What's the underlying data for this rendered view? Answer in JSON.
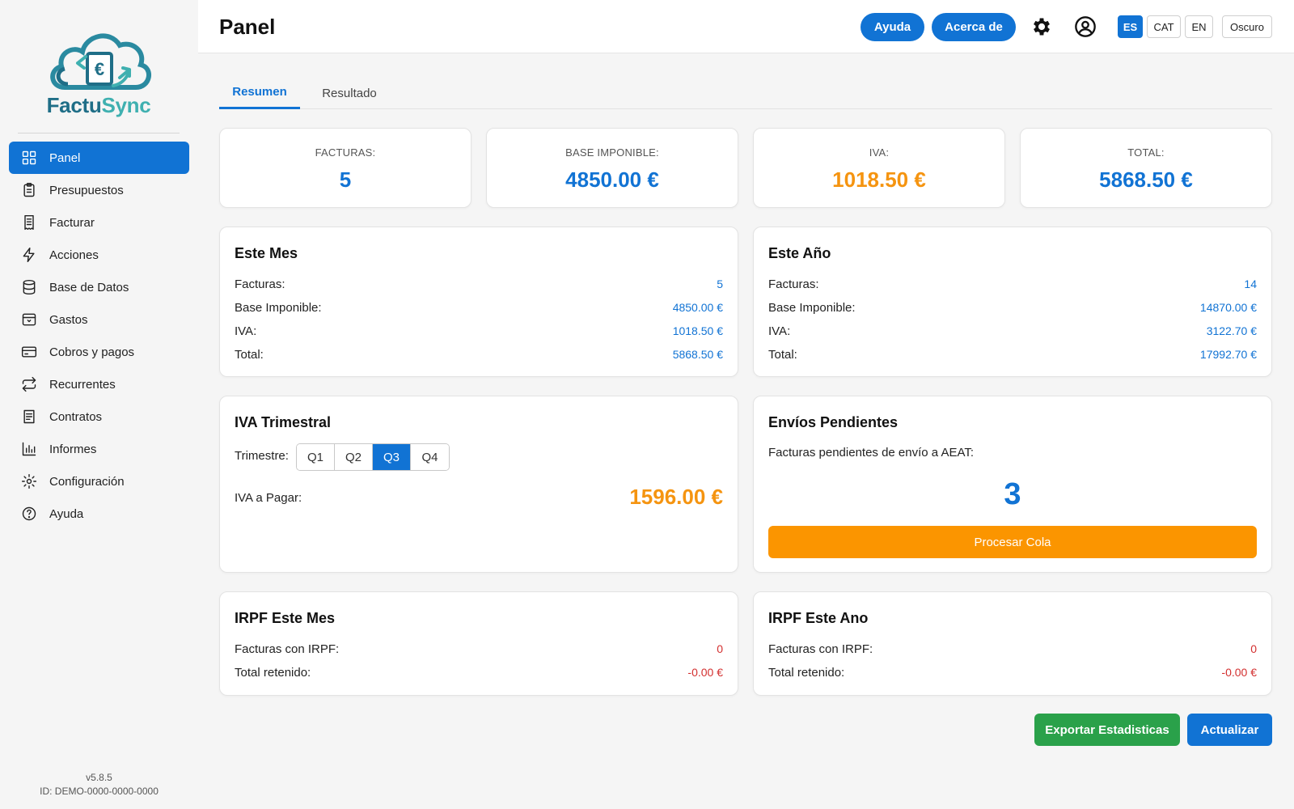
{
  "brand": {
    "name_part1": "Factu",
    "name_part2": "Sync"
  },
  "sidebar": {
    "items": [
      {
        "label": "Panel",
        "icon": "grid-icon"
      },
      {
        "label": "Presupuestos",
        "icon": "clipboard-icon"
      },
      {
        "label": "Facturar",
        "icon": "receipt-icon"
      },
      {
        "label": "Acciones",
        "icon": "lightning-icon"
      },
      {
        "label": "Base de Datos",
        "icon": "database-icon"
      },
      {
        "label": "Gastos",
        "icon": "inbox-icon"
      },
      {
        "label": "Cobros y pagos",
        "icon": "credit-card-icon"
      },
      {
        "label": "Recurrentes",
        "icon": "repeat-icon"
      },
      {
        "label": "Contratos",
        "icon": "contract-icon"
      },
      {
        "label": "Informes",
        "icon": "bar-chart-icon"
      },
      {
        "label": "Configuración",
        "icon": "gear-icon"
      },
      {
        "label": "Ayuda",
        "icon": "help-circle-icon"
      }
    ],
    "version": "v5.8.5",
    "device_id": "ID: DEMO-0000-0000-0000"
  },
  "header": {
    "title": "Panel",
    "help_label": "Ayuda",
    "about_label": "Acerca de",
    "languages": [
      "ES",
      "CAT",
      "EN"
    ],
    "active_language": "ES",
    "theme_label": "Oscuro"
  },
  "tabs": [
    {
      "label": "Resumen"
    },
    {
      "label": "Resultado"
    }
  ],
  "summary": {
    "invoices_label": "FACTURAS:",
    "invoices_value": "5",
    "base_label": "BASE IMPONIBLE:",
    "base_value": "4850.00 €",
    "iva_label": "IVA:",
    "iva_value": "1018.50 €",
    "total_label": "TOTAL:",
    "total_value": "5868.50 €"
  },
  "month": {
    "title": "Este Mes",
    "rows": [
      {
        "label": "Facturas:",
        "value": "5"
      },
      {
        "label": "Base Imponible:",
        "value": "4850.00 €"
      },
      {
        "label": "IVA:",
        "value": "1018.50 €"
      },
      {
        "label": "Total:",
        "value": "5868.50 €"
      }
    ]
  },
  "year": {
    "title": "Este Año",
    "rows": [
      {
        "label": "Facturas:",
        "value": "14"
      },
      {
        "label": "Base Imponible:",
        "value": "14870.00 €"
      },
      {
        "label": "IVA:",
        "value": "3122.70 €"
      },
      {
        "label": "Total:",
        "value": "17992.70 €"
      }
    ]
  },
  "quarterly": {
    "title": "IVA Trimestral",
    "quarter_label": "Trimestre:",
    "quarters": [
      "Q1",
      "Q2",
      "Q3",
      "Q4"
    ],
    "active_quarter": "Q3",
    "pay_label": "IVA a Pagar:",
    "pay_value": "1596.00 €"
  },
  "pending": {
    "title": "Envíos Pendientes",
    "description": "Facturas pendientes de envío a AEAT:",
    "count": "3",
    "process_label": "Procesar Cola"
  },
  "irpf_month": {
    "title": "IRPF Este Mes",
    "rows": [
      {
        "label": "Facturas con IRPF:",
        "value": "0"
      },
      {
        "label": "Total retenido:",
        "value": "-0.00 €"
      }
    ]
  },
  "irpf_year": {
    "title": "IRPF Este Ano",
    "rows": [
      {
        "label": "Facturas con IRPF:",
        "value": "0"
      },
      {
        "label": "Total retenido:",
        "value": "-0.00 €"
      }
    ]
  },
  "actions": {
    "export_label": "Exportar Estadisticas",
    "refresh_label": "Actualizar"
  },
  "colors": {
    "primary": "#1173d4",
    "orange": "#f59410",
    "green": "#2aa14a",
    "red": "#d32f2f"
  }
}
